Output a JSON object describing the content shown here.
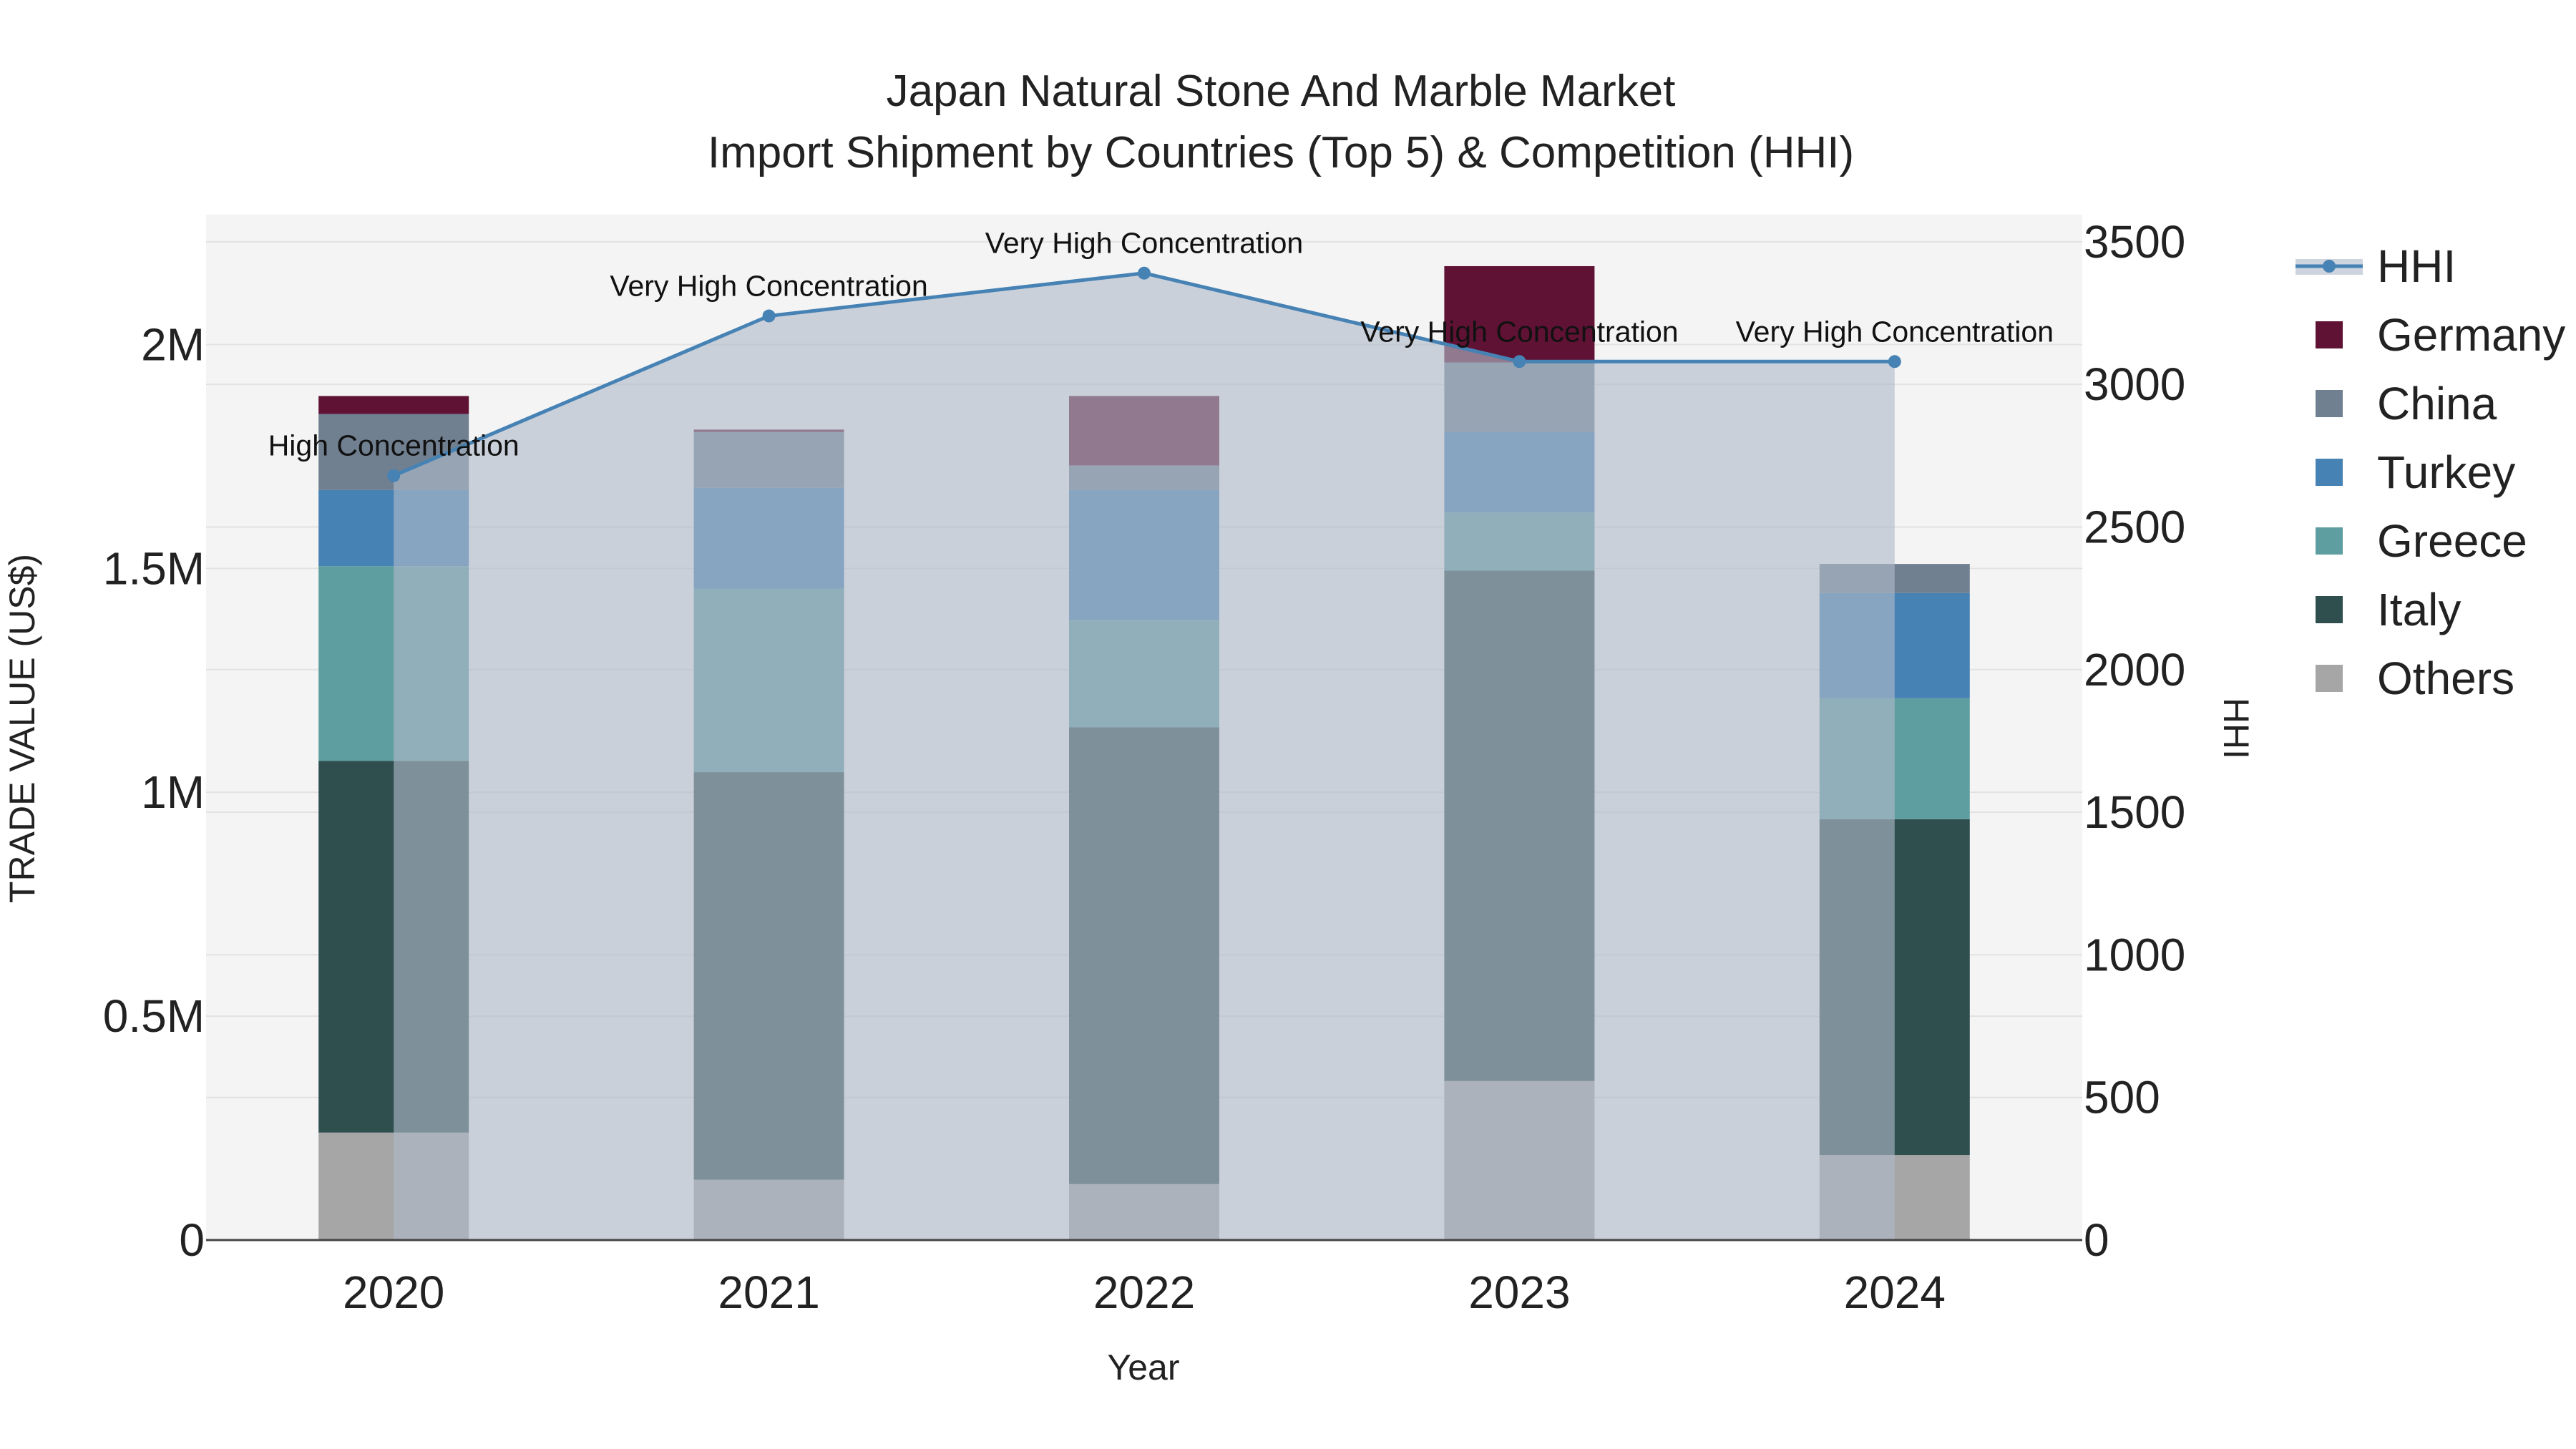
{
  "chart_data": {
    "type": "bar",
    "title": "Japan Natural Stone And Marble Market",
    "subtitle": "Import Shipment by Countries (Top 5) & Competition (HHI)",
    "xlabel": "Year",
    "ylabel": "TRADE VALUE (US$)",
    "y2label": "HHI",
    "categories": [
      "2020",
      "2021",
      "2022",
      "2023",
      "2024"
    ],
    "ylim": [
      0,
      2290000
    ],
    "y2lim": [
      0,
      3595
    ],
    "yticks": [
      0,
      500000,
      1000000,
      1500000,
      2000000
    ],
    "ytick_labels": [
      "0",
      "0.5M",
      "1M",
      "1.5M",
      "2M"
    ],
    "y2ticks": [
      0,
      500,
      1000,
      1500,
      2000,
      2500,
      3000,
      3500
    ],
    "y2tick_labels": [
      "0",
      "500",
      "1000",
      "1500",
      "2000",
      "2500",
      "3000",
      "3500"
    ],
    "series": [
      {
        "name": "Others",
        "color": "#a6a6a6",
        "values": [
          240000,
          135000,
          125000,
          355000,
          190000
        ]
      },
      {
        "name": "Italy",
        "color": "#2f4f4f",
        "values": [
          830000,
          910000,
          1020000,
          1140000,
          750000
        ]
      },
      {
        "name": "Greece",
        "color": "#5f9ea0",
        "values": [
          435000,
          410000,
          240000,
          130000,
          270000
        ]
      },
      {
        "name": "Turkey",
        "color": "#4682b4",
        "values": [
          170000,
          225000,
          290000,
          180000,
          235000
        ]
      },
      {
        "name": "China",
        "color": "#708090",
        "values": [
          170000,
          125000,
          55000,
          155000,
          65000
        ]
      },
      {
        "name": "Germany",
        "color": "#5f1234",
        "values": [
          40000,
          5000,
          155000,
          215000,
          0
        ]
      }
    ],
    "hhi": {
      "name": "HHI",
      "color": "#4682b4",
      "values": [
        2680,
        3240,
        3390,
        3080,
        3080
      ],
      "labels": [
        "High Concentration",
        "Very High Concentration",
        "Very High Concentration",
        "Very High Concentration",
        "Very High Concentration"
      ]
    },
    "legend": [
      "HHI",
      "Germany",
      "China",
      "Turkey",
      "Greece",
      "Italy",
      "Others"
    ]
  }
}
